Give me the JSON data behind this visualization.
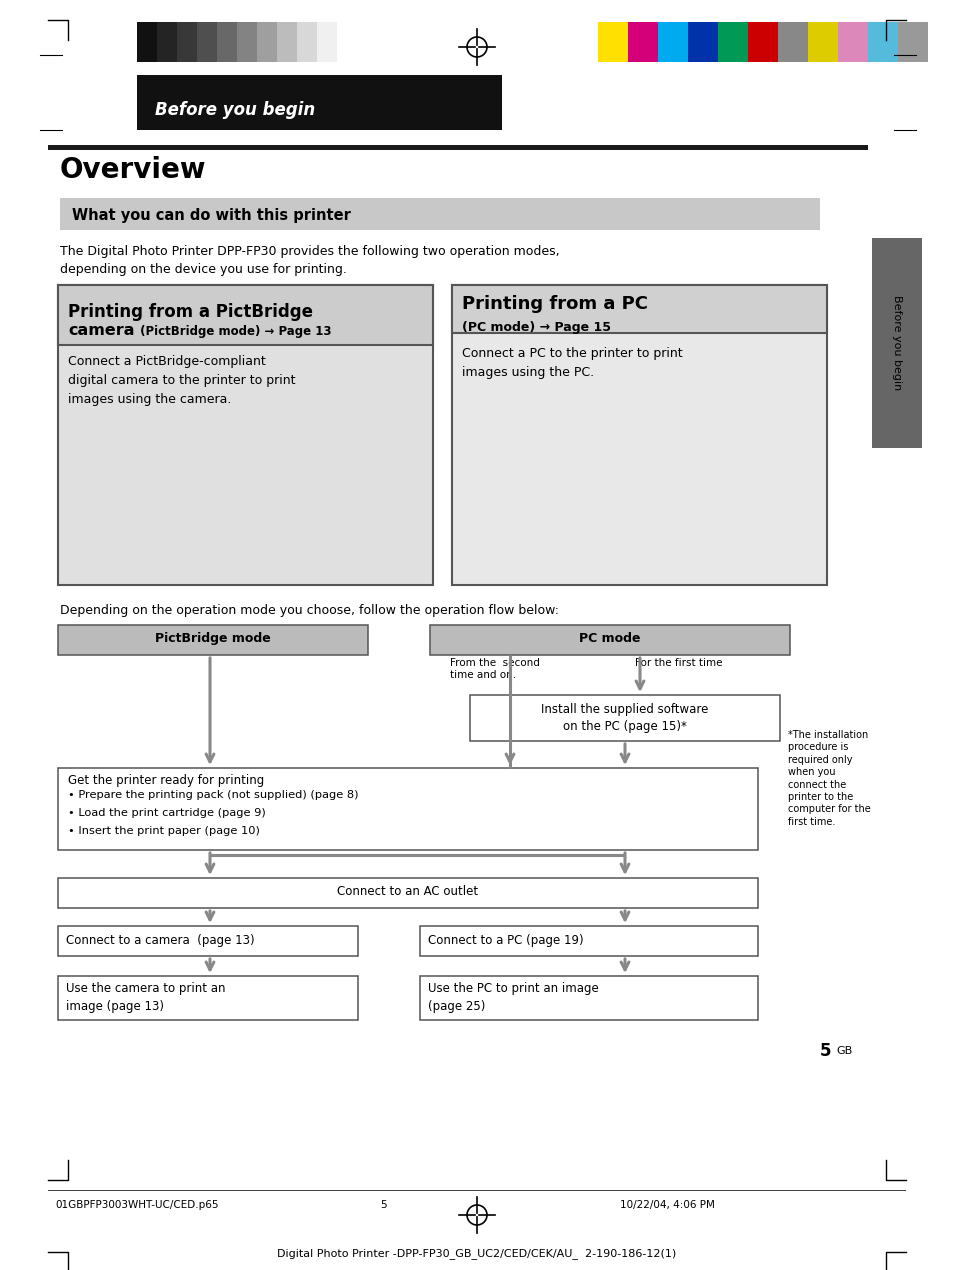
{
  "bg_color": "#ffffff",
  "header_text": "Before you begin",
  "page_title": "Overview",
  "section_header": "What you can do with this printer",
  "intro_text": "The Digital Photo Printer DPP-FP30 provides the following two operation modes,\ndepending on the device you use for printing.",
  "box1_title1": "Printing from a PictBridge",
  "box1_title2": "camera",
  "box1_title2b": " (PictBridge mode) → Page 13",
  "box1_body": "Connect a PictBridge-compliant\ndigital camera to the printer to print\nimages using the camera.",
  "box2_title1": "Printing from a PC",
  "box2_title2": "(PC mode) → Page 15",
  "box2_body": "Connect a PC to the printer to print\nimages using the PC.",
  "flow_intro": "Depending on the operation mode you choose, follow the operation flow below:",
  "flow_box_pictbridge": "PictBridge mode",
  "flow_box_pc": "PC mode",
  "flow_label_second": "From the  second\ntime and on.",
  "flow_label_first": "For the first time",
  "flow_box_install": "Install the supplied software\non the PC (page 15)*",
  "flow_note": "*The installation\nprocedure is\nrequired only\nwhen you\nconnect the\nprinter to the\ncomputer for the\nfirst time.",
  "flow_box_get_ready_title": "Get the printer ready for printing",
  "flow_box_get_ready_bullets": [
    "Prepare the printing pack (not supplied) (page 8)",
    "Load the print cartridge (page 9)",
    "Insert the print paper (page 10)"
  ],
  "flow_box_ac": "Connect to an AC outlet",
  "flow_box_camera": "Connect to a camera  (page 13)",
  "flow_box_pc_connect": "Connect to a PC (page 19)",
  "flow_box_use_camera": "Use the camera to print an\nimage (page 13)",
  "flow_box_use_pc": "Use the PC to print an image\n(page 25)",
  "side_tab_text": "Before you begin",
  "footer_left": "01GBPFP3003WHT-UC/CED.p65",
  "footer_page": "5",
  "footer_date": "10/22/04, 4:06 PM",
  "footer_bottom": "Digital Photo Printer -DPP-FP30_GB_UC2/CED/CEK/AU_  2-190-186-12(1)",
  "page_number": "5",
  "page_number_suffix": "GB",
  "color_strips_dark": [
    "#111111",
    "#242424",
    "#383838",
    "#4f4f4f",
    "#686868",
    "#838383",
    "#9f9f9f",
    "#bcbcbc",
    "#d8d8d8",
    "#f0f0f0"
  ],
  "color_strips_color": [
    "#ffe000",
    "#d4007a",
    "#00aaee",
    "#0033aa",
    "#009955",
    "#cc0000",
    "#888888",
    "#ddcc00",
    "#dd88bb",
    "#55bbdd",
    "#999999"
  ],
  "header_bg": "#111111",
  "section_bg": "#c8c8c8",
  "box1_bg": "#e0e0e0",
  "box1_header_bg": "#cccccc",
  "box2_bg": "#e8e8e8",
  "box2_header_bg": "#d0d0d0",
  "flow_header_bg": "#bbbbbb",
  "flow_box_bg": "#ffffff",
  "arrow_color": "#888888",
  "side_tab_bg": "#666666",
  "border_color": "#555555",
  "black": "#000000",
  "dark_line": "#1a1a1a"
}
